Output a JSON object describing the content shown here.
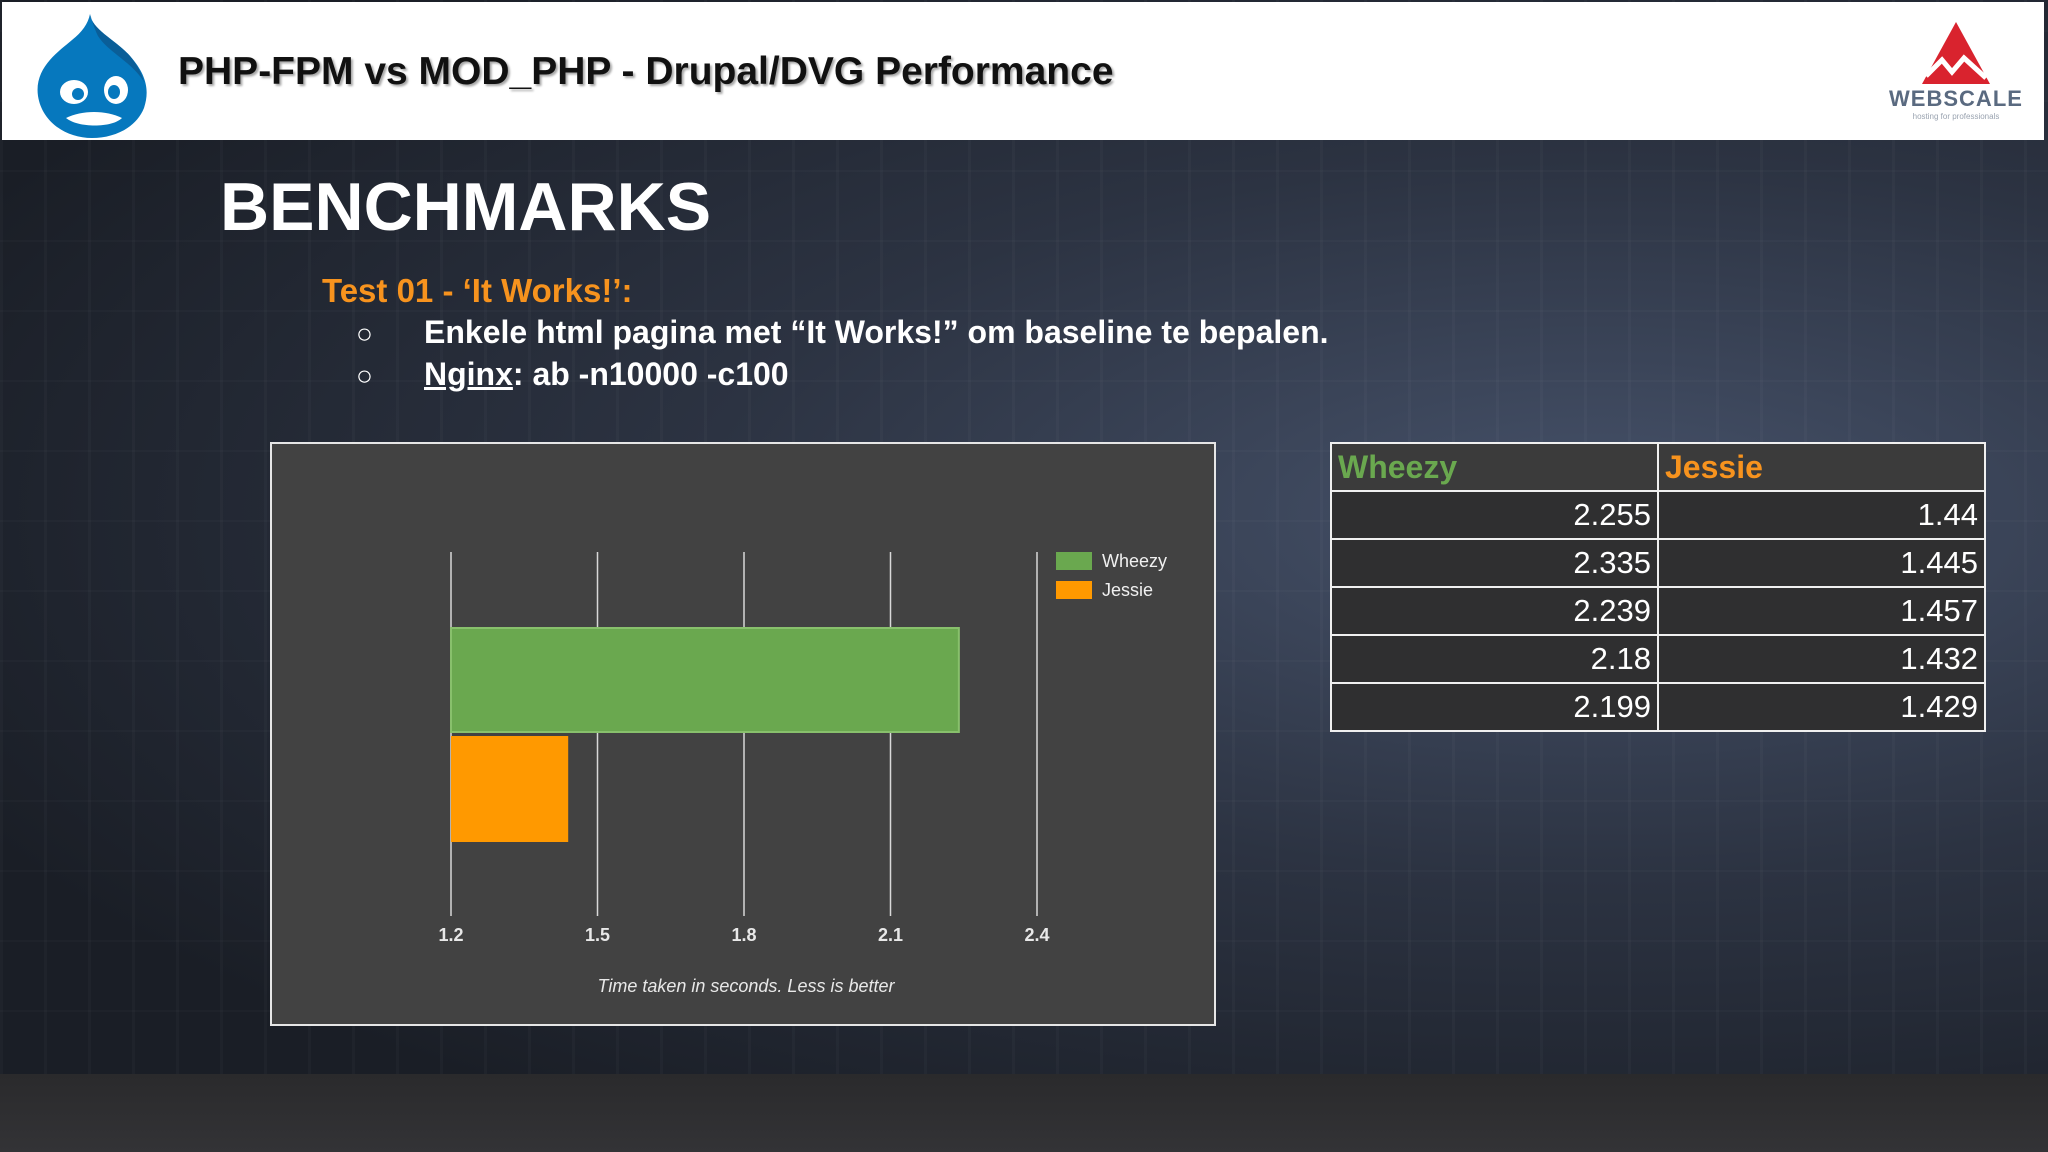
{
  "header": {
    "title": "PHP-FPM vs MOD_PHP - Drupal/DVG Performance",
    "logo_left_icon": "drupal-drop-icon",
    "logo_right_icon": "webscale-mountain-icon",
    "logo_right_text": "WEBSCALE",
    "logo_right_tagline": "hosting for professionals"
  },
  "slide": {
    "title": "BENCHMARKS",
    "test_heading": "Test 01 - ‘It Works!’:",
    "bullets": [
      {
        "mark": "○",
        "text": "Enkele html pagina met “It Works!” om baseline te bepalen."
      },
      {
        "mark": "○",
        "link": "Nginx",
        "rest": ": ab -n10000 -c100"
      }
    ]
  },
  "colors": {
    "wheezy": "#6aa84f",
    "jessie": "#ff9900",
    "accent_orange": "#f7931e",
    "webscale_red": "#d9232e"
  },
  "chart_data": {
    "type": "bar",
    "orientation": "horizontal",
    "categories": [
      ""
    ],
    "series": [
      {
        "name": "Wheezy",
        "values": [
          2.24
        ]
      },
      {
        "name": "Jessie",
        "values": [
          1.44
        ]
      }
    ],
    "xlabel": "Time taken in seconds. Less is better",
    "xlim": [
      1.2,
      2.4
    ],
    "xticks": [
      "1.2",
      "1.5",
      "1.8",
      "2.1",
      "2.4"
    ],
    "grid": true,
    "legend": "top-right"
  },
  "table": {
    "headers": [
      "Wheezy",
      "Jessie"
    ],
    "rows": [
      [
        "2.255",
        "1.44"
      ],
      [
        "2.335",
        "1.445"
      ],
      [
        "2.239",
        "1.457"
      ],
      [
        "2.18",
        "1.432"
      ],
      [
        "2.199",
        "1.429"
      ]
    ]
  }
}
